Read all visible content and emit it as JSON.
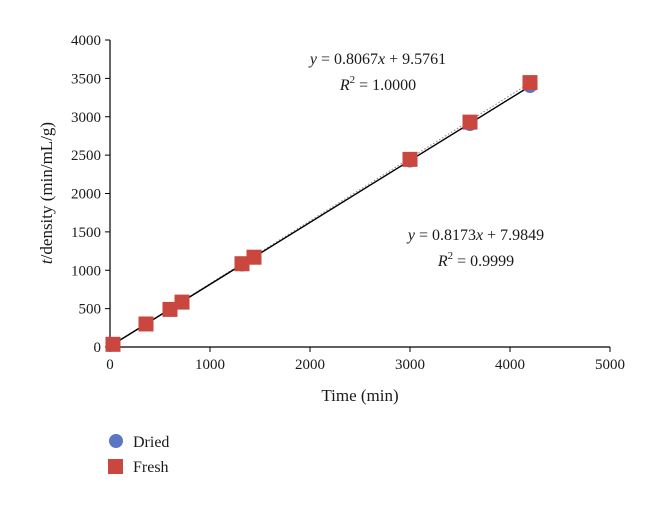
{
  "chart_data": {
    "type": "scatter",
    "xlabel": "Time (min)",
    "ylabel_italic": "t",
    "ylabel_rest": "/density (min/mL/g)",
    "xlim": [
      0,
      5000
    ],
    "ylim": [
      0,
      4000
    ],
    "xticks": [
      0,
      1000,
      2000,
      3000,
      4000,
      5000
    ],
    "yticks": [
      0,
      500,
      1000,
      1500,
      2000,
      2500,
      3000,
      3500,
      4000
    ],
    "xtick_labels": [
      "0",
      "1000",
      "2000",
      "3000",
      "4000",
      "5000"
    ],
    "ytick_labels": [
      "0",
      "500",
      "1000",
      "1500",
      "2000",
      "2500",
      "3000",
      "3500",
      "4000"
    ],
    "grid": false,
    "legend_position": "bottom-left",
    "series": [
      {
        "name": "Dried",
        "marker": "circle",
        "color": "#5b77c4",
        "x": [
          30,
          360,
          600,
          720,
          1320,
          1440,
          3000,
          3600,
          4200
        ],
        "y": [
          35,
          300,
          490,
          585,
          1075,
          1165,
          2430,
          2905,
          3400
        ],
        "fit": {
          "slope": 0.8173,
          "intercept": 7.9849,
          "style": "dotted",
          "color": "#8a8a8a"
        },
        "equation": {
          "lhs": "y",
          "rhs": " = 0.8173",
          "var": "x",
          "tail": " + 7.9849",
          "r2_label": "R",
          "r2_sup": "2",
          "r2_value": " = 0.9999"
        }
      },
      {
        "name": "Fresh",
        "marker": "square",
        "color": "#c9473f",
        "x": [
          30,
          360,
          600,
          720,
          1320,
          1440,
          3000,
          3600,
          4200
        ],
        "y": [
          35,
          300,
          490,
          585,
          1085,
          1170,
          2445,
          2930,
          3445
        ],
        "fit": {
          "slope": 0.8067,
          "intercept": 9.5761,
          "style": "solid",
          "color": "#000000"
        },
        "equation": {
          "lhs": "y",
          "rhs": " = 0.8067",
          "var": "x",
          "tail": " + 9.5761",
          "r2_label": "R",
          "r2_sup": "2",
          "r2_value": " = 1.0000"
        }
      }
    ]
  }
}
